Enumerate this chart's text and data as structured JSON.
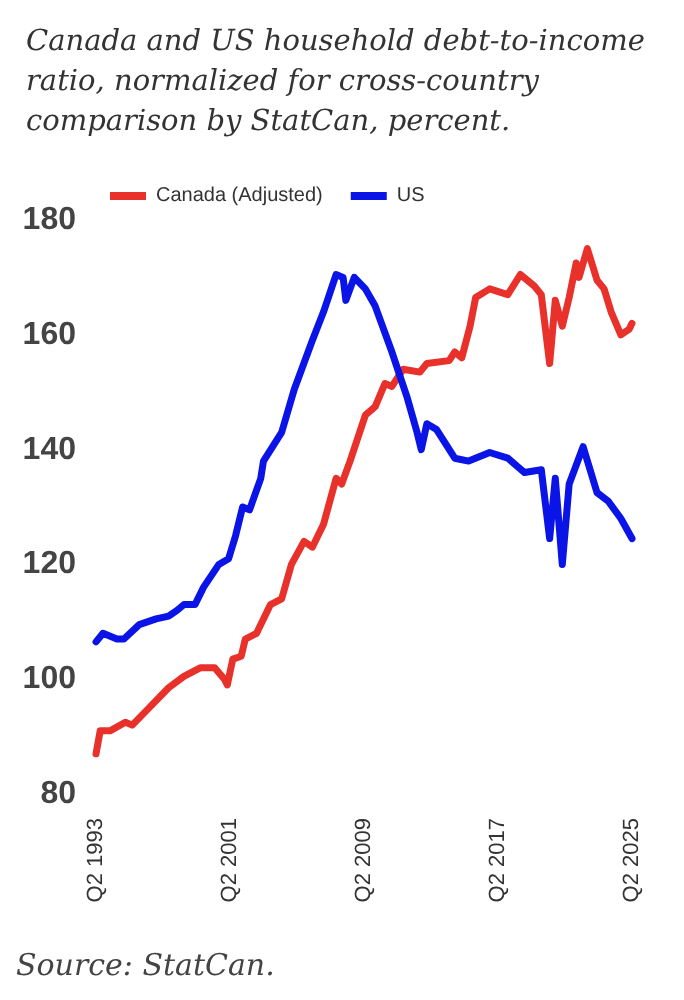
{
  "chart_data": {
    "type": "line",
    "title": "Canada and US household debt-to-income ratio, normalized for cross-country comparison by StatCan, percent.",
    "annotations": [
      "Source: StatCan."
    ],
    "series": [
      {
        "name": "Canada (Adjusted)",
        "color": "#e8312a",
        "x": [
          "1993-04",
          "1993-07",
          "1994-02",
          "1995-01",
          "1995-06",
          "1996-06",
          "1997-08",
          "1998-07",
          "1999-07",
          "2000-02",
          "2000-05",
          "2000-12",
          "2001-02",
          "2001-06",
          "2001-12",
          "2002-03",
          "2002-11",
          "2003-09",
          "2004-05",
          "2004-12",
          "2005-09",
          "2006-03",
          "2006-11",
          "2007-08",
          "2007-12",
          "2008-06",
          "2009-05",
          "2009-12",
          "2010-07",
          "2010-12",
          "2011-08",
          "2012-08",
          "2013-01",
          "2014-05",
          "2014-09",
          "2015-02",
          "2015-08",
          "2015-12",
          "2016-10",
          "2017-11",
          "2018-08",
          "2019-06",
          "2019-11",
          "2020-05",
          "2020-09",
          "2021-02",
          "2021-07",
          "2021-12",
          "2022-02",
          "2022-08",
          "2023-03",
          "2023-08",
          "2024-01",
          "2024-08",
          "2025-02",
          "2025-04"
        ],
        "values": [
          87,
          91,
          91,
          92.5,
          92,
          95,
          98.5,
          100.5,
          102,
          102,
          102,
          100,
          99,
          103.5,
          104,
          107,
          108,
          113,
          114,
          120,
          124,
          123,
          127,
          135,
          134,
          138,
          146,
          147.5,
          151.5,
          151,
          154,
          153.5,
          155,
          155.5,
          157,
          156,
          161.5,
          166.5,
          168,
          167,
          170.5,
          168.5,
          167,
          155,
          166,
          161.5,
          166.5,
          172.5,
          170,
          175,
          169.5,
          168,
          164,
          160,
          161,
          162
        ]
      },
      {
        "name": "US",
        "color": "#0a14e6",
        "x": [
          "1993-04",
          "1993-09",
          "1994-07",
          "1994-12",
          "1995-11",
          "1996-11",
          "1997-08",
          "1998-02",
          "1998-07",
          "1999-03",
          "1999-09",
          "2000-08",
          "2001-03",
          "2001-08",
          "2002-01",
          "2002-06",
          "2003-02",
          "2003-04",
          "2004-05",
          "2005-02",
          "2006-03",
          "2006-11",
          "2007-08",
          "2008-01",
          "2008-03",
          "2008-09",
          "2009-05",
          "2009-12",
          "2010-12",
          "2011-11",
          "2012-06",
          "2012-09",
          "2013-01",
          "2013-08",
          "2014-09",
          "2015-07",
          "2016-10",
          "2017-11",
          "2018-11",
          "2019-11",
          "2020-05",
          "2020-09",
          "2021-02",
          "2021-07",
          "2022-05",
          "2023-03",
          "2023-11",
          "2024-08",
          "2025-04"
        ],
        "values": [
          106.5,
          108,
          107,
          107,
          109.5,
          110.5,
          111,
          112,
          113,
          113,
          116,
          120,
          121,
          125,
          130,
          129.5,
          135,
          138,
          143,
          150.5,
          159,
          164,
          170.5,
          170,
          166,
          170,
          168,
          165,
          157,
          149,
          143,
          140,
          144.5,
          143.5,
          138.5,
          138,
          139.5,
          138.5,
          136,
          136.5,
          124.5,
          135,
          120,
          134,
          140.5,
          132.5,
          131,
          128,
          124.5
        ]
      }
    ],
    "xlim": [
      "1993-04",
      "2025-04"
    ],
    "xticks": [
      {
        "value": "1993-04",
        "label": "Q2 1993"
      },
      {
        "value": "2001-04",
        "label": "Q2 2001"
      },
      {
        "value": "2009-04",
        "label": "Q2 2009"
      },
      {
        "value": "2017-04",
        "label": "Q2 2017"
      },
      {
        "value": "2025-04",
        "label": "Q2 2025"
      }
    ],
    "ylim": [
      80,
      180
    ],
    "yticks": [
      80,
      100,
      120,
      140,
      160,
      180
    ],
    "grid": false,
    "legend": "top left",
    "marker": "none",
    "line_style": "solid"
  }
}
